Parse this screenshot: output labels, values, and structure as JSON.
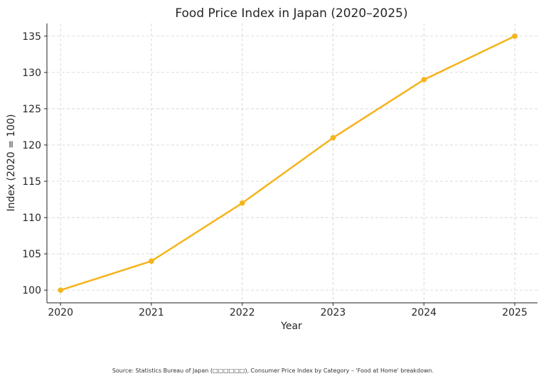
{
  "chart_data": {
    "type": "line",
    "title": "Food Price Index in Japan (2020–2025)",
    "xlabel": "Year",
    "ylabel": "Index (2020 = 100)",
    "x": [
      2020,
      2021,
      2022,
      2023,
      2024,
      2025
    ],
    "series": [
      {
        "values": [
          100,
          104,
          112,
          121,
          129,
          135
        ]
      }
    ],
    "xlim": [
      2019.85,
      2025.25
    ],
    "ylim": [
      98.25,
      136.75
    ],
    "yticks": [
      100,
      105,
      110,
      115,
      120,
      125,
      130,
      135
    ],
    "grid": true,
    "line_color": "#f6b31a"
  },
  "source": "Source: Statistics Bureau of Japan (□□□□□□), Consumer Price Index by Category – 'Food at Home' breakdown."
}
